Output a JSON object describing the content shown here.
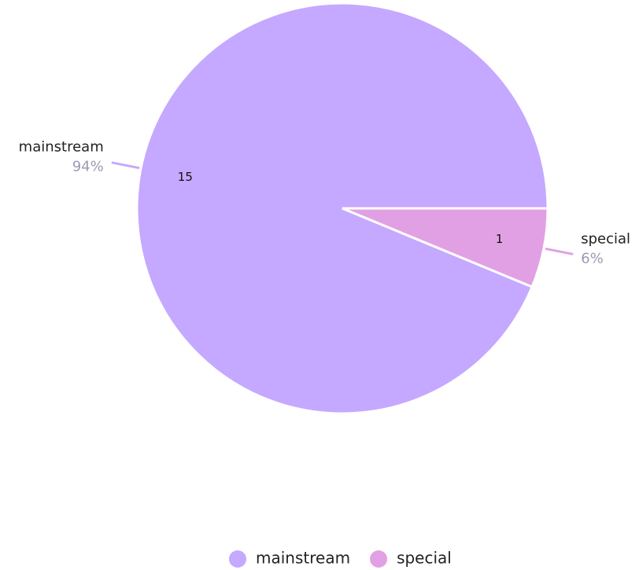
{
  "chart_data": {
    "type": "pie",
    "categories": [
      "mainstream",
      "special"
    ],
    "values": [
      15,
      1
    ],
    "percentages": [
      94,
      6
    ],
    "percentage_labels": [
      "94%",
      "6%"
    ],
    "colors": [
      "#c5a8ff",
      "#e2a0e4"
    ],
    "legend": "bottom"
  }
}
